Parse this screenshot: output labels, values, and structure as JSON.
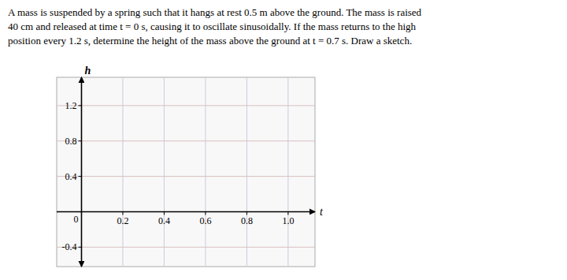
{
  "chart_data": {
    "type": "line",
    "title": "A mass is suspended by a spring such that it hangs at rest 0.5 m above the ground. The mass is raised\n40 cm and released at time t = 0 s, causing it to oscillate sinusoidally. If the mass returns to the high\nposition every 1.2 s, determine the height of the mass above the ground at t = 0.7 s. Draw a sketch.",
    "x_label": "t",
    "y_label": "h",
    "xlim": [
      -0.12,
      1.13
    ],
    "ylim": [
      -0.62,
      1.52
    ],
    "xticks": [
      0,
      0.2,
      0.4,
      0.6,
      0.8,
      {
        "value": 1.0,
        "label": "1.0"
      }
    ],
    "yticks": [
      -0.4,
      0,
      0.4,
      0.8,
      1.2
    ],
    "grid": true
  }
}
